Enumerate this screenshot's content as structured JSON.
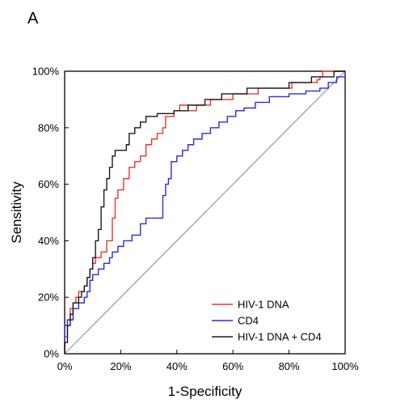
{
  "panel_letter": "A",
  "chart_data": {
    "type": "line",
    "title": "",
    "xlabel": "1-Specificity",
    "ylabel": "Sensitivity",
    "xlim": [
      0,
      100
    ],
    "ylim": [
      0,
      100
    ],
    "x_ticks": [
      0,
      20,
      40,
      60,
      80,
      100
    ],
    "y_ticks": [
      0,
      20,
      40,
      60,
      80,
      100
    ],
    "x_tick_labels": [
      "0%",
      "20%",
      "40%",
      "60%",
      "80%",
      "100%"
    ],
    "y_tick_labels": [
      "0%",
      "20%",
      "40%",
      "60%",
      "80%",
      "100%"
    ],
    "grid": false,
    "legend_position": "bottom-right",
    "reference_line": {
      "from": [
        0,
        0
      ],
      "to": [
        100,
        100
      ],
      "color": "#999999"
    },
    "series": [
      {
        "name": "HIV-1 DNA",
        "color": "#e8372f",
        "points": [
          [
            0,
            0
          ],
          [
            0,
            6
          ],
          [
            1,
            6
          ],
          [
            1,
            12
          ],
          [
            2,
            12
          ],
          [
            2,
            16
          ],
          [
            3,
            16
          ],
          [
            3,
            18
          ],
          [
            4,
            18
          ],
          [
            4,
            20
          ],
          [
            5,
            20
          ],
          [
            5,
            22
          ],
          [
            7,
            22
          ],
          [
            7,
            24
          ],
          [
            8,
            24
          ],
          [
            8,
            27
          ],
          [
            9,
            27
          ],
          [
            9,
            30
          ],
          [
            10,
            30
          ],
          [
            10,
            32
          ],
          [
            11,
            32
          ],
          [
            11,
            34
          ],
          [
            13,
            34
          ],
          [
            13,
            36
          ],
          [
            15,
            36
          ],
          [
            15,
            40
          ],
          [
            17,
            40
          ],
          [
            17,
            48
          ],
          [
            18,
            48
          ],
          [
            18,
            55
          ],
          [
            19,
            55
          ],
          [
            19,
            58
          ],
          [
            21,
            58
          ],
          [
            21,
            62
          ],
          [
            23,
            62
          ],
          [
            23,
            66
          ],
          [
            25,
            66
          ],
          [
            25,
            68
          ],
          [
            27,
            68
          ],
          [
            27,
            70
          ],
          [
            29,
            70
          ],
          [
            29,
            74
          ],
          [
            31,
            74
          ],
          [
            31,
            76
          ],
          [
            33,
            76
          ],
          [
            33,
            78
          ],
          [
            35,
            78
          ],
          [
            35,
            80
          ],
          [
            36,
            80
          ],
          [
            36,
            84
          ],
          [
            39,
            84
          ],
          [
            39,
            86
          ],
          [
            41,
            86
          ],
          [
            41,
            88
          ],
          [
            44,
            88
          ],
          [
            44,
            86
          ],
          [
            47,
            86
          ],
          [
            47,
            88
          ],
          [
            52,
            88
          ],
          [
            52,
            90
          ],
          [
            60,
            90
          ],
          [
            60,
            92
          ],
          [
            69,
            92
          ],
          [
            69,
            94
          ],
          [
            81,
            94
          ],
          [
            81,
            96
          ],
          [
            90,
            96
          ],
          [
            90,
            97
          ],
          [
            91,
            97
          ],
          [
            91,
            98
          ],
          [
            92,
            98
          ],
          [
            92,
            100
          ],
          [
            100,
            100
          ]
        ]
      },
      {
        "name": "CD4",
        "color": "#2c2cdc",
        "points": [
          [
            0,
            0
          ],
          [
            0,
            10
          ],
          [
            1,
            10
          ],
          [
            1,
            12
          ],
          [
            3,
            12
          ],
          [
            3,
            16
          ],
          [
            5,
            16
          ],
          [
            5,
            18
          ],
          [
            7,
            18
          ],
          [
            7,
            20
          ],
          [
            8,
            20
          ],
          [
            8,
            22
          ],
          [
            9,
            22
          ],
          [
            9,
            26
          ],
          [
            10,
            26
          ],
          [
            10,
            28
          ],
          [
            12,
            28
          ],
          [
            12,
            30
          ],
          [
            14,
            30
          ],
          [
            14,
            32
          ],
          [
            16,
            32
          ],
          [
            16,
            34
          ],
          [
            17,
            34
          ],
          [
            17,
            36
          ],
          [
            19,
            36
          ],
          [
            19,
            38
          ],
          [
            21,
            38
          ],
          [
            21,
            40
          ],
          [
            24,
            40
          ],
          [
            24,
            42
          ],
          [
            27,
            42
          ],
          [
            27,
            46
          ],
          [
            29,
            46
          ],
          [
            29,
            48
          ],
          [
            33,
            48
          ],
          [
            33,
            48
          ],
          [
            35,
            48
          ],
          [
            35,
            56
          ],
          [
            36,
            56
          ],
          [
            36,
            60
          ],
          [
            37,
            60
          ],
          [
            37,
            62
          ],
          [
            38,
            62
          ],
          [
            38,
            68
          ],
          [
            40,
            68
          ],
          [
            40,
            70
          ],
          [
            42,
            70
          ],
          [
            42,
            72
          ],
          [
            44,
            72
          ],
          [
            44,
            74
          ],
          [
            46,
            74
          ],
          [
            46,
            76
          ],
          [
            49,
            76
          ],
          [
            49,
            78
          ],
          [
            52,
            78
          ],
          [
            52,
            80
          ],
          [
            55,
            80
          ],
          [
            55,
            82
          ],
          [
            58,
            82
          ],
          [
            58,
            84
          ],
          [
            61,
            84
          ],
          [
            61,
            86
          ],
          [
            64,
            86
          ],
          [
            64,
            87
          ],
          [
            68,
            87
          ],
          [
            68,
            89
          ],
          [
            73,
            89
          ],
          [
            73,
            91
          ],
          [
            80,
            91
          ],
          [
            80,
            92
          ],
          [
            86,
            92
          ],
          [
            86,
            93
          ],
          [
            91,
            93
          ],
          [
            91,
            94
          ],
          [
            94,
            94
          ],
          [
            94,
            96
          ],
          [
            97,
            96
          ],
          [
            97,
            98
          ],
          [
            100,
            98
          ],
          [
            100,
            100
          ]
        ]
      },
      {
        "name": "HIV-1 DNA + CD4",
        "color": "#1a1a1a",
        "points": [
          [
            0,
            0
          ],
          [
            0,
            4
          ],
          [
            1,
            4
          ],
          [
            1,
            10
          ],
          [
            2,
            10
          ],
          [
            2,
            14
          ],
          [
            3,
            14
          ],
          [
            3,
            18
          ],
          [
            5,
            18
          ],
          [
            5,
            20
          ],
          [
            6,
            20
          ],
          [
            6,
            22
          ],
          [
            7,
            22
          ],
          [
            7,
            24
          ],
          [
            8,
            24
          ],
          [
            8,
            27
          ],
          [
            9,
            27
          ],
          [
            9,
            30
          ],
          [
            10,
            30
          ],
          [
            10,
            34
          ],
          [
            11,
            34
          ],
          [
            11,
            40
          ],
          [
            12,
            40
          ],
          [
            12,
            44
          ],
          [
            13,
            44
          ],
          [
            13,
            52
          ],
          [
            14,
            52
          ],
          [
            14,
            58
          ],
          [
            15,
            58
          ],
          [
            15,
            62
          ],
          [
            16,
            62
          ],
          [
            16,
            66
          ],
          [
            17,
            66
          ],
          [
            17,
            70
          ],
          [
            18,
            70
          ],
          [
            18,
            72
          ],
          [
            22,
            72
          ],
          [
            22,
            74
          ],
          [
            23,
            74
          ],
          [
            23,
            78
          ],
          [
            25,
            78
          ],
          [
            25,
            80
          ],
          [
            27,
            80
          ],
          [
            27,
            82
          ],
          [
            29,
            82
          ],
          [
            29,
            84
          ],
          [
            33,
            84
          ],
          [
            33,
            85
          ],
          [
            39,
            85
          ],
          [
            39,
            86
          ],
          [
            44,
            86
          ],
          [
            44,
            88
          ],
          [
            50,
            88
          ],
          [
            50,
            90
          ],
          [
            56,
            90
          ],
          [
            56,
            92
          ],
          [
            65,
            92
          ],
          [
            65,
            94
          ],
          [
            80,
            94
          ],
          [
            80,
            96
          ],
          [
            88,
            96
          ],
          [
            88,
            98
          ],
          [
            96,
            98
          ],
          [
            96,
            100
          ],
          [
            100,
            100
          ]
        ]
      }
    ]
  }
}
